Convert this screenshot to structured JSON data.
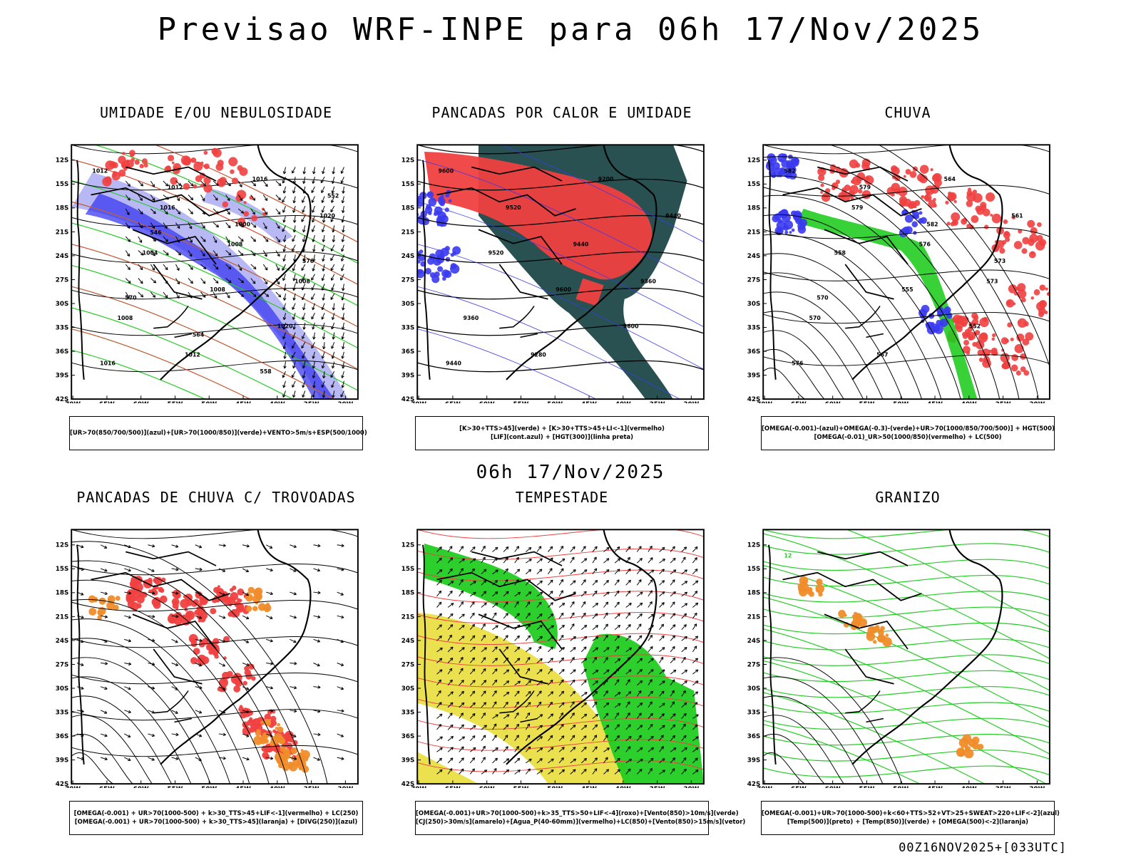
{
  "header": {
    "title": "Previsao WRF-INPE  para 06h 17/Nov/2025",
    "mid_title": "06h 17/Nov/2025",
    "footer": "00Z16NOV2025+[033UTC]"
  },
  "axes": {
    "lat_labels": [
      "12S",
      "15S",
      "18S",
      "21S",
      "24S",
      "27S",
      "30S",
      "33S",
      "36S",
      "39S",
      "42S"
    ],
    "lon_labels": [
      "70W",
      "65W",
      "60W",
      "55W",
      "50W",
      "45W",
      "40W",
      "35W",
      "30W"
    ]
  },
  "panels": [
    {
      "title": "UMIDADE E/OU NEBULOSIDADE",
      "legend": [
        "[UR>70(850/700/500)](azul)+[UR>70(1000/850)](verde)+VENTO>5m/s+ESP(500/1000)"
      ],
      "contour_labels": [
        "1012",
        "1016",
        "1008",
        "1008",
        "1008",
        "1012",
        "1016",
        "1020",
        "1004",
        "1008",
        "1020",
        "1016",
        "1012",
        "1000",
        "576",
        "570",
        "564",
        "558",
        "552",
        "546"
      ]
    },
    {
      "title": "PANCADAS POR CALOR E UMIDADE",
      "legend": [
        "[K>30+TTS>45](verde) + [K>30+TTS>45+LI<-1](vermelho)",
        "[LIF](cont.azul) + [HGT(300)](linha preta)"
      ],
      "contour_labels": [
        "9600",
        "9520",
        "9440",
        "9360",
        "9360",
        "9280",
        "9200",
        "9440",
        "9520",
        "9600",
        "9600",
        "9440"
      ]
    },
    {
      "title": "CHUVA",
      "legend": [
        "[OMEGA(-0.001)-(azul)+OMEGA(-0.3)-(verde)+UR>70(1000/850/700/500)] + HGT(500)",
        "[OMEGA(-0.01)_UR>50(1000/850)(vermelho) + LC(500)"
      ],
      "contour_labels": [
        "582",
        "579",
        "576",
        "573",
        "570",
        "567",
        "564",
        "561",
        "558",
        "555",
        "552",
        "576",
        "579",
        "582",
        "573",
        "570"
      ]
    },
    {
      "title": "PANCADAS DE CHUVA C/ TROVOADAS",
      "legend": [
        "[OMEGA(-0.001) + UR>70(1000-500) + k>30_TTS>45+LIF<-1](vermelho) + LC(250)",
        "[OMEGA(-0.001) + UR>70(1000-500) + k>30_TTS>45](laranja) + [DIVG(250)](azul)"
      ],
      "contour_labels": []
    },
    {
      "title": "TEMPESTADE",
      "legend": [
        "[OMEGA(-0.001)+UR>70(1000-500)+k>35_TTS>50+LIF<-4](roxo)+[Vento(850)>10m/s](verde)",
        "[CJ(250)>30m/s](amarelo)+[Agua_P(40-60mm)](vermelho)+LC(850)+[Vento(850)>15m/s](vetor)"
      ],
      "contour_labels": []
    },
    {
      "title": "GRANIZO",
      "legend": [
        "[OMEGA(-0.001)+UR>70(1000-500)+k<60+TTS>52+VT>25+SWEAT>220+LIF<-2](azul)",
        "[Temp(500)](preto) + [Temp(850)](verde) + [OMEGA(500)<-2](laranja)"
      ],
      "contour_labels": [
        "12"
      ]
    }
  ],
  "colors": {
    "red": "#f04040",
    "green": "#22cc22",
    "blue": "#3a3af0",
    "lightblue": "#b0b0f4",
    "teal": "#1e4848",
    "yellow": "#e8dc30",
    "orange": "#f08c2a"
  }
}
